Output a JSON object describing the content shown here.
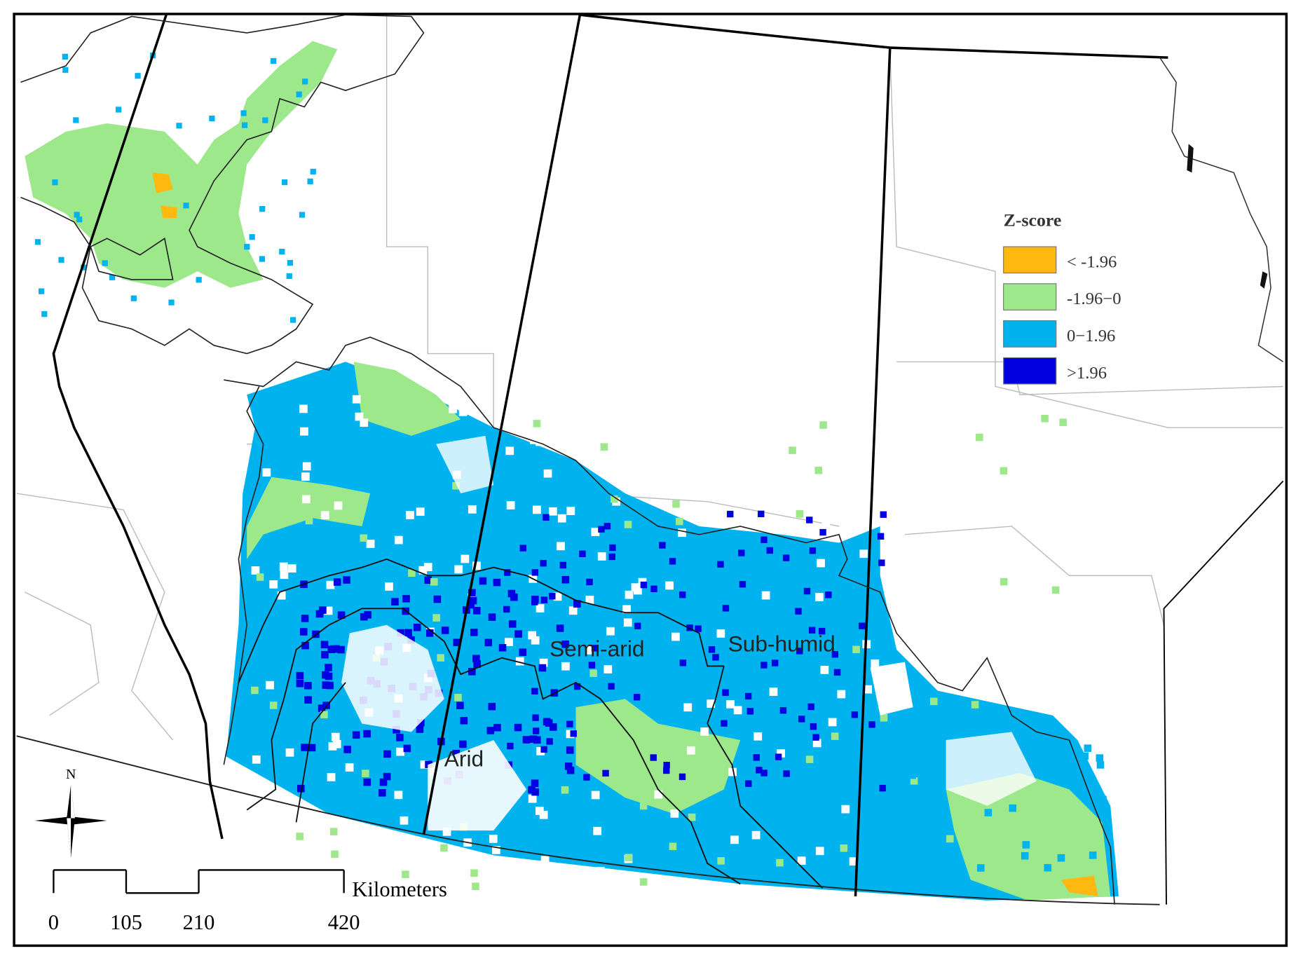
{
  "legend": {
    "title": "Z-score",
    "items": [
      {
        "label": "< -1.96",
        "color": "#ffb810"
      },
      {
        "label": "-1.96−0",
        "color": "#9ee88c"
      },
      {
        "label": "0−1.96",
        "color": "#00b2ee"
      },
      {
        "label": ">1.96",
        "color": "#0000e0"
      }
    ]
  },
  "regions": [
    "Semi-arid",
    "Sub-humid",
    "Arid"
  ],
  "north": "N",
  "scale_bar": {
    "unit": "Kilometers",
    "ticks": [
      0,
      105,
      210,
      420
    ]
  }
}
